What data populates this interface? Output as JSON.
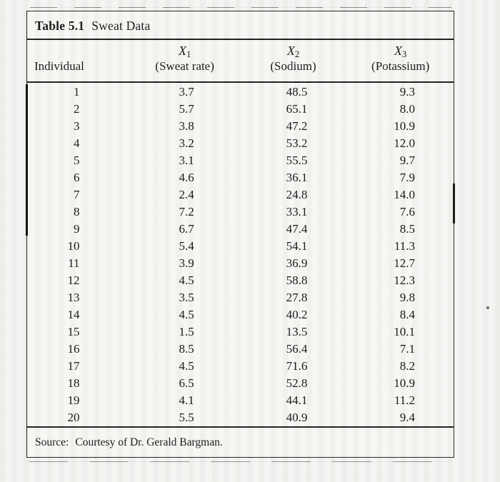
{
  "caption": {
    "number": "Table 5.1",
    "title": "Sweat Data"
  },
  "table": {
    "columns": [
      {
        "symbol": "",
        "sub": "",
        "label": "Individual"
      },
      {
        "symbol": "X",
        "sub": "1",
        "label": "(Sweat rate)"
      },
      {
        "symbol": "X",
        "sub": "2",
        "label": "(Sodium)"
      },
      {
        "symbol": "X",
        "sub": "3",
        "label": "(Potassium)"
      }
    ],
    "rows": [
      [
        "1",
        "3.7",
        "48.5",
        "9.3"
      ],
      [
        "2",
        "5.7",
        "65.1",
        "8.0"
      ],
      [
        "3",
        "3.8",
        "47.2",
        "10.9"
      ],
      [
        "4",
        "3.2",
        "53.2",
        "12.0"
      ],
      [
        "5",
        "3.1",
        "55.5",
        "9.7"
      ],
      [
        "6",
        "4.6",
        "36.1",
        "7.9"
      ],
      [
        "7",
        "2.4",
        "24.8",
        "14.0"
      ],
      [
        "8",
        "7.2",
        "33.1",
        "7.6"
      ],
      [
        "9",
        "6.7",
        "47.4",
        "8.5"
      ],
      [
        "10",
        "5.4",
        "54.1",
        "11.3"
      ],
      [
        "11",
        "3.9",
        "36.9",
        "12.7"
      ],
      [
        "12",
        "4.5",
        "58.8",
        "12.3"
      ],
      [
        "13",
        "3.5",
        "27.8",
        "9.8"
      ],
      [
        "14",
        "4.5",
        "40.2",
        "8.4"
      ],
      [
        "15",
        "1.5",
        "13.5",
        "10.1"
      ],
      [
        "16",
        "8.5",
        "56.4",
        "7.1"
      ],
      [
        "17",
        "4.5",
        "71.6",
        "8.2"
      ],
      [
        "18",
        "6.5",
        "52.8",
        "10.9"
      ],
      [
        "19",
        "4.1",
        "44.1",
        "11.2"
      ],
      [
        "20",
        "5.5",
        "40.9",
        "9.4"
      ]
    ],
    "cell_names": [
      "individual-cell",
      "sweat-rate-cell",
      "sodium-cell",
      "potassium-cell"
    ]
  },
  "source": {
    "prefix": "Source:",
    "text": "Courtesy of Dr. Gerald Bargman."
  },
  "colors": {
    "ink": "#1c1c1c",
    "paper": "#f3f3f1"
  }
}
